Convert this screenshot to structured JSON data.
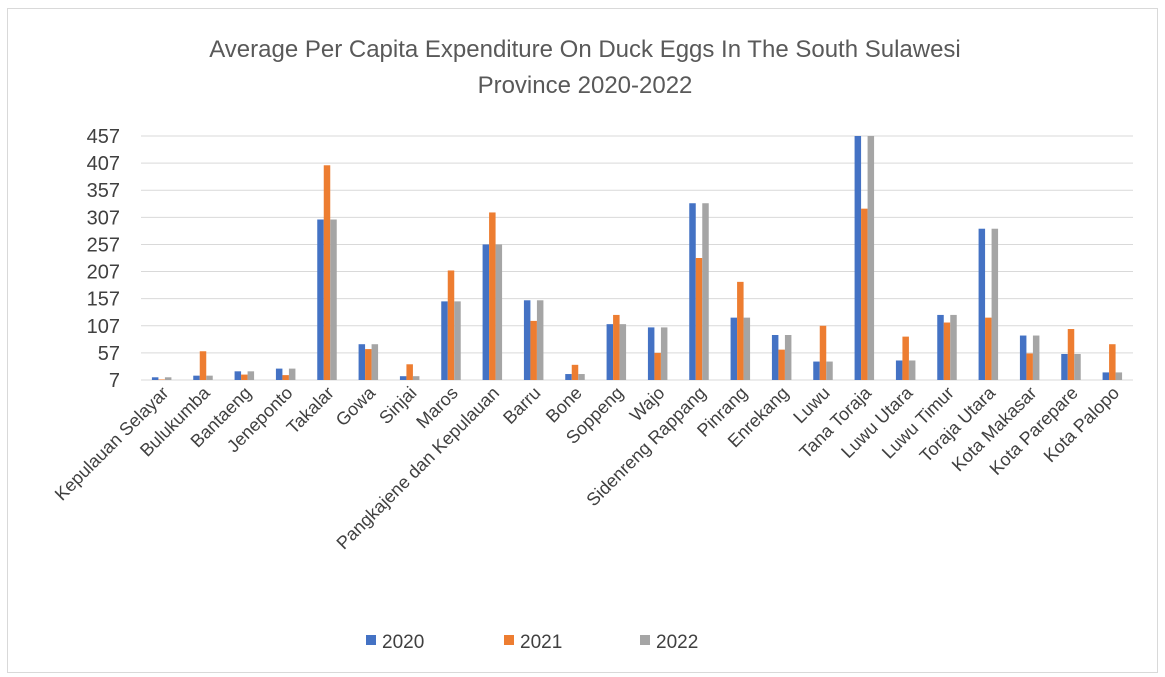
{
  "chart_data": {
    "type": "bar",
    "title_lines": [
      "Average Per Capita Expenditure On Duck Eggs In The South Sulawesi",
      "Province 2020-2022"
    ],
    "xlabel": "",
    "ylabel": "",
    "ylim": [
      7,
      457
    ],
    "yticks": [
      "7",
      "57",
      "107",
      "157",
      "207",
      "257",
      "307",
      "357",
      "407",
      "457"
    ],
    "grid": true,
    "legend_position": "bottom",
    "categories": [
      "Kepulauan Selayar",
      "Bulukumba",
      "Bantaeng",
      "Jeneponto",
      "Takalar",
      "Gowa",
      "Sinjai",
      "Maros",
      "Pangkajene dan Kepulauan",
      "Barru",
      "Bone",
      "Soppeng",
      "Wajo",
      "Sidenreng Rappang",
      "Pinrang",
      "Enrekang",
      "Luwu",
      "Tana Toraja",
      "Luwu Utara",
      "Luwu Timur",
      "Toraja Utara",
      "Kota Makasar",
      "Kota Parepare",
      "Kota Palopo"
    ],
    "series": [
      {
        "name": "2020",
        "color": "#4472c4",
        "values": [
          12,
          15,
          23,
          28,
          303,
          73,
          14,
          152,
          257,
          154,
          18,
          110,
          104,
          333,
          122,
          90,
          41,
          457,
          43,
          127,
          286,
          89,
          55,
          21
        ]
      },
      {
        "name": "2021",
        "color": "#ed7d31",
        "values": [
          8,
          60,
          17,
          16,
          403,
          64,
          36,
          209,
          316,
          116,
          35,
          127,
          57,
          232,
          188,
          63,
          107,
          323,
          87,
          113,
          122,
          56,
          101,
          73
        ]
      },
      {
        "name": "2022",
        "color": "#a5a5a5",
        "values": [
          12,
          15,
          23,
          28,
          303,
          73,
          14,
          152,
          257,
          154,
          18,
          110,
          104,
          333,
          122,
          90,
          41,
          457,
          43,
          127,
          286,
          89,
          55,
          21
        ]
      }
    ]
  }
}
